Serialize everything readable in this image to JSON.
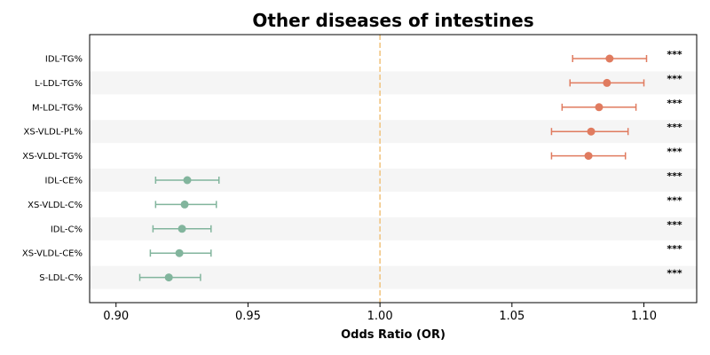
{
  "chart_data": {
    "type": "forest",
    "title": "Other diseases of intestines",
    "xlabel": "Odds Ratio (OR)",
    "xlim": [
      0.89,
      1.12
    ],
    "xticks": [
      0.9,
      0.95,
      1.0,
      1.05,
      1.1
    ],
    "xtick_labels": [
      "0.90",
      "0.95",
      "1.00",
      "1.05",
      "1.10"
    ],
    "reference_line": 1.0,
    "reference_color": "#f0c27b",
    "colors": {
      "positive": "#e07b5f",
      "negative": "#82b59d",
      "band": "#f5f5f5"
    },
    "rows": [
      {
        "label": "IDL-TG%",
        "or": 1.087,
        "lower": 1.073,
        "upper": 1.101,
        "sig": "***"
      },
      {
        "label": "L-LDL-TG%",
        "or": 1.086,
        "lower": 1.072,
        "upper": 1.1,
        "sig": "***"
      },
      {
        "label": "M-LDL-TG%",
        "or": 1.083,
        "lower": 1.069,
        "upper": 1.097,
        "sig": "***"
      },
      {
        "label": "XS-VLDL-PL%",
        "or": 1.08,
        "lower": 1.065,
        "upper": 1.094,
        "sig": "***"
      },
      {
        "label": "XS-VLDL-TG%",
        "or": 1.079,
        "lower": 1.065,
        "upper": 1.093,
        "sig": "***"
      },
      {
        "label": "IDL-CE%",
        "or": 0.927,
        "lower": 0.915,
        "upper": 0.939,
        "sig": "***"
      },
      {
        "label": "XS-VLDL-C%",
        "or": 0.926,
        "lower": 0.915,
        "upper": 0.938,
        "sig": "***"
      },
      {
        "label": "IDL-C%",
        "or": 0.925,
        "lower": 0.914,
        "upper": 0.936,
        "sig": "***"
      },
      {
        "label": "XS-VLDL-CE%",
        "or": 0.924,
        "lower": 0.913,
        "upper": 0.936,
        "sig": "***"
      },
      {
        "label": "S-LDL-C%",
        "or": 0.92,
        "lower": 0.909,
        "upper": 0.932,
        "sig": "***"
      }
    ]
  }
}
